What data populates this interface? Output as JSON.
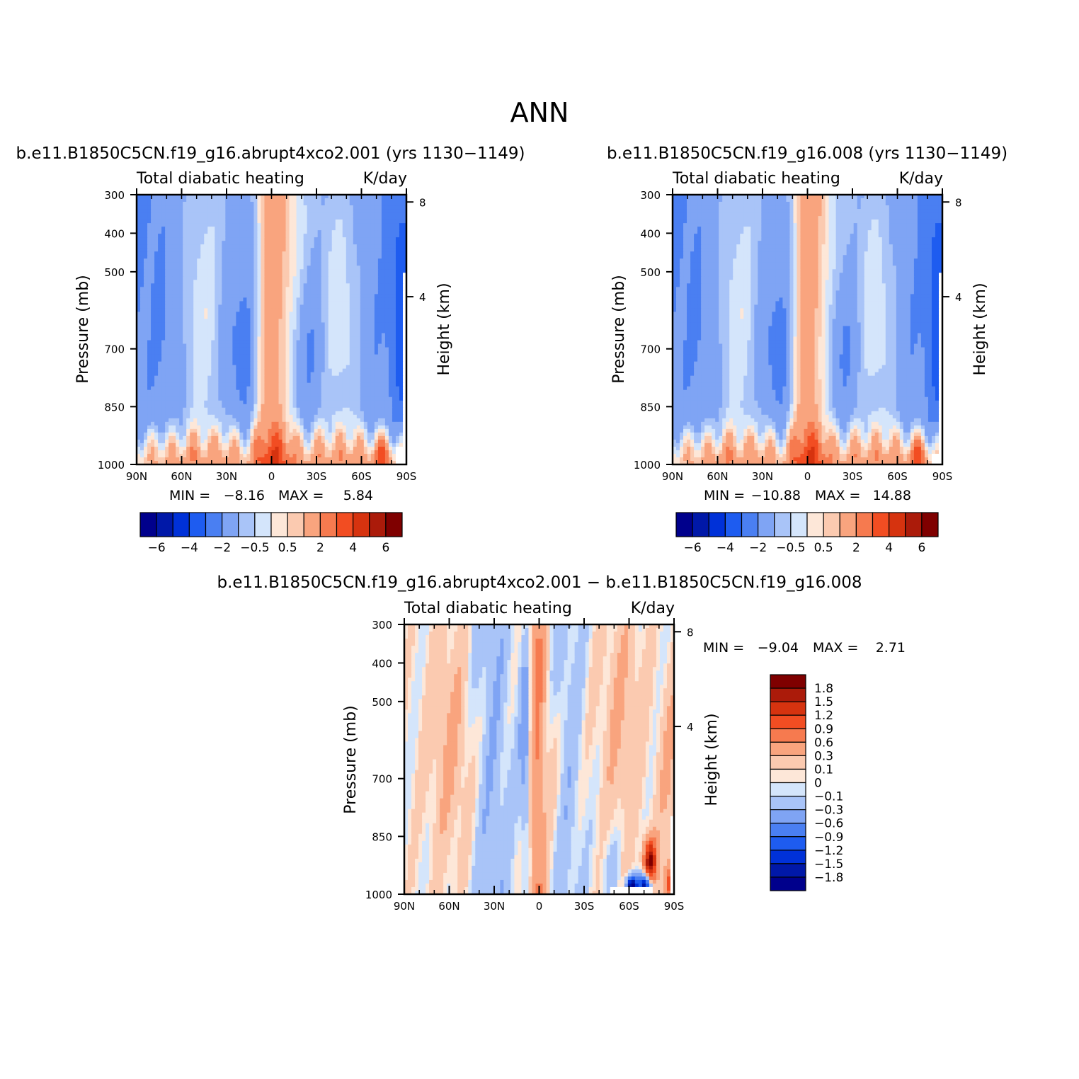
{
  "title": "ANN",
  "colors": {
    "diverging": [
      "#00008c",
      "#0018a8",
      "#0031d8",
      "#1e5cf0",
      "#4a7ff2",
      "#7fa4f4",
      "#a9c4f8",
      "#d4e5fb",
      "#fde7d8",
      "#fbcab0",
      "#f9a47e",
      "#f67a4f",
      "#f24d22",
      "#d6330f",
      "#ab1b0a",
      "#7f0000"
    ],
    "missing": "#ffffff"
  },
  "colorbars": {
    "top_labels": [
      "−6",
      "−4",
      "−2",
      "−0.5",
      "0.5",
      "2",
      "4",
      "6"
    ],
    "diff_labels": [
      "1.8",
      "1.5",
      "1.2",
      "0.9",
      "0.6",
      "0.3",
      "0.1",
      "0",
      "−0.1",
      "−0.3",
      "−0.6",
      "−0.9",
      "−1.2",
      "−1.5",
      "−1.8"
    ]
  },
  "panels": [
    {
      "title": "b.e11.B1850C5CN.f19_g16.abrupt4xco2.001 (yrs 1130−1149)",
      "variable": "Total diabatic heating",
      "units": "K/day",
      "min_label": "MIN =",
      "min_value": "−8.16",
      "max_label": "MAX =",
      "max_value": "5.84",
      "ylabel": "Pressure (mb)",
      "ylabel_right": "Height (km)"
    },
    {
      "title": "b.e11.B1850C5CN.f19_g16.008 (yrs 1130−1149)",
      "variable": "Total diabatic heating",
      "units": "K/day",
      "min_label": "MIN =",
      "min_value": "−10.88",
      "max_label": "MAX =",
      "max_value": "14.88",
      "ylabel": "Pressure (mb)",
      "ylabel_right": "Height (km)"
    },
    {
      "title": "b.e11.B1850C5CN.f19_g16.abrupt4xco2.001 − b.e11.B1850C5CN.f19_g16.008",
      "variable": "Total diabatic heating",
      "units": "K/day",
      "min_label": "MIN =",
      "min_value": "−9.04",
      "max_label": "MAX =",
      "max_value": "2.71",
      "ylabel": "Pressure (mb)",
      "ylabel_right": "Height (km)"
    }
  ],
  "chart_data": [
    {
      "type": "heatmap",
      "title": "b.e11.B1850C5CN.f19_g16.abrupt4xco2.001 (yrs 1130−1149)",
      "subtitle": "Total diabatic heating",
      "units": "K/day",
      "x": [
        -90,
        -80,
        -70,
        -60,
        -50,
        -40,
        -30,
        -20,
        -10,
        0,
        10,
        20,
        30,
        40,
        50,
        60,
        70,
        80,
        90
      ],
      "x_ticks": [
        "90N",
        "60N",
        "30N",
        "0",
        "30S",
        "60S",
        "90S"
      ],
      "x_tick_values": [
        -90,
        -60,
        -30,
        0,
        30,
        60,
        90
      ],
      "y_ticks": [
        "300",
        "400",
        "500",
        "700",
        "850",
        "1000"
      ],
      "y_tick_values": [
        300,
        400,
        500,
        700,
        850,
        1000
      ],
      "y_right_ticks": [
        "8",
        "4"
      ],
      "y_right_tick_values": [
        8,
        4
      ],
      "ylim": [
        1000,
        300
      ],
      "min": -8.16,
      "max": 5.84,
      "levels": [
        -7,
        -6,
        -5,
        -4,
        -3,
        -2,
        -1,
        -0.5,
        0,
        0.5,
        1,
        2,
        3,
        4,
        5,
        6,
        7
      ]
    },
    {
      "type": "heatmap",
      "title": "b.e11.B1850C5CN.f19_g16.008 (yrs 1130−1149)",
      "subtitle": "Total diabatic heating",
      "units": "K/day",
      "x": [
        -90,
        -80,
        -70,
        -60,
        -50,
        -40,
        -30,
        -20,
        -10,
        0,
        10,
        20,
        30,
        40,
        50,
        60,
        70,
        80,
        90
      ],
      "x_ticks": [
        "90N",
        "60N",
        "30N",
        "0",
        "30S",
        "60S",
        "90S"
      ],
      "x_tick_values": [
        -90,
        -60,
        -30,
        0,
        30,
        60,
        90
      ],
      "y_ticks": [
        "300",
        "400",
        "500",
        "700",
        "850",
        "1000"
      ],
      "y_tick_values": [
        300,
        400,
        500,
        700,
        850,
        1000
      ],
      "y_right_ticks": [
        "8",
        "4"
      ],
      "y_right_tick_values": [
        8,
        4
      ],
      "ylim": [
        1000,
        300
      ],
      "min": -10.88,
      "max": 14.88,
      "levels": [
        -7,
        -6,
        -5,
        -4,
        -3,
        -2,
        -1,
        -0.5,
        0,
        0.5,
        1,
        2,
        3,
        4,
        5,
        6,
        7
      ]
    },
    {
      "type": "heatmap",
      "title": "b.e11.B1850C5CN.f19_g16.abrupt4xco2.001 − b.e11.B1850C5CN.f19_g16.008",
      "subtitle": "Total diabatic heating",
      "units": "K/day",
      "x": [
        -90,
        -80,
        -70,
        -60,
        -50,
        -40,
        -30,
        -20,
        -10,
        0,
        10,
        20,
        30,
        40,
        50,
        60,
        70,
        80,
        90
      ],
      "x_ticks": [
        "90N",
        "60N",
        "30N",
        "0",
        "30S",
        "60S",
        "90S"
      ],
      "x_tick_values": [
        -90,
        -60,
        -30,
        0,
        30,
        60,
        90
      ],
      "y_ticks": [
        "300",
        "400",
        "500",
        "700",
        "850",
        "1000"
      ],
      "y_tick_values": [
        300,
        400,
        500,
        700,
        850,
        1000
      ],
      "y_right_ticks": [
        "8",
        "4"
      ],
      "y_right_tick_values": [
        8,
        4
      ],
      "ylim": [
        1000,
        300
      ],
      "min": -9.04,
      "max": 2.71,
      "levels": [
        -2.1,
        -1.8,
        -1.5,
        -1.2,
        -0.9,
        -0.6,
        -0.3,
        -0.1,
        0,
        0.1,
        0.3,
        0.6,
        0.9,
        1.2,
        1.5,
        1.8,
        2.1
      ]
    }
  ]
}
